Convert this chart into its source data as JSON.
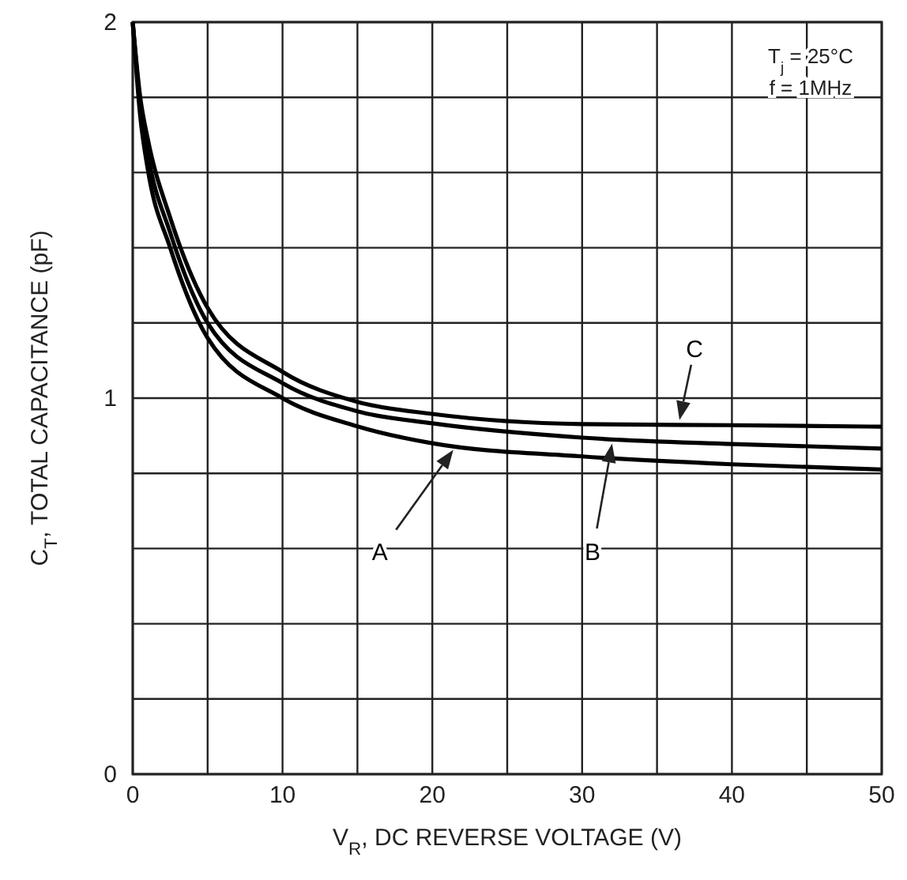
{
  "chart_data": {
    "type": "line",
    "xlabel": "V$_{R}$, DC REVERSE VOLTAGE (V)",
    "ylabel": "C$_{T}$, TOTAL CAPACITANCE (pF)",
    "x": [
      0,
      0.5,
      1,
      2.5,
      5,
      10,
      15,
      20,
      30,
      40,
      50
    ],
    "series": [
      {
        "name": "A",
        "color": "#000000",
        "values": [
          2.0,
          1.75,
          1.61,
          1.4,
          1.16,
          1.0,
          0.925,
          0.88,
          0.845,
          0.824,
          0.81
        ]
      },
      {
        "name": "B",
        "color": "#000000",
        "values": [
          2.0,
          1.78,
          1.65,
          1.44,
          1.2,
          1.04,
          0.965,
          0.933,
          0.895,
          0.878,
          0.866
        ]
      },
      {
        "name": "C",
        "color": "#000000",
        "values": [
          2.0,
          1.8,
          1.69,
          1.48,
          1.24,
          1.07,
          0.99,
          0.958,
          0.931,
          0.928,
          0.924
        ]
      }
    ],
    "xlim": [
      0,
      50
    ],
    "ylim": [
      0,
      2
    ],
    "xticks": [
      0,
      {
        "value": 5,
        "label": null
      },
      10,
      {
        "value": 15,
        "label": null
      },
      20,
      {
        "value": 25,
        "label": null
      },
      30,
      {
        "value": 35,
        "label": null
      },
      40,
      {
        "value": 45,
        "label": null
      },
      50
    ],
    "yticks": [
      0,
      {
        "value": 0.2,
        "label": null
      },
      {
        "value": 0.4,
        "label": null
      },
      {
        "value": 0.6,
        "label": null
      },
      {
        "value": 0.8,
        "label": null
      },
      1,
      {
        "value": 1.2,
        "label": null
      },
      {
        "value": 1.4,
        "label": null
      },
      {
        "value": 1.6,
        "label": null
      },
      {
        "value": 1.8,
        "label": null
      },
      2
    ],
    "grid": true,
    "line_style": "solid",
    "annotations": [
      "T$_{j}$ = 25°C",
      "f = 1MHz"
    ]
  }
}
